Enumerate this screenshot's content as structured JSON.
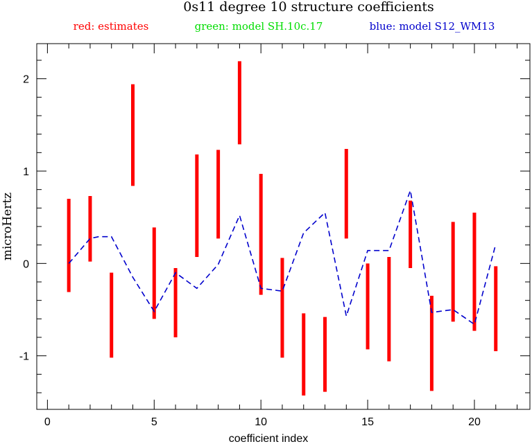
{
  "chart_data": {
    "type": "errorbar-line",
    "title": "0s11 degree 10 structure coefficients",
    "legend": [
      {
        "label": "red: estimates",
        "color": "#ff0000"
      },
      {
        "label": "green: model SH.10c.17",
        "color": "#00dd00"
      },
      {
        "label": "blue: model S12_WM13",
        "color": "#0000cc"
      }
    ],
    "xlabel": "coefficient index",
    "ylabel": "microHertz",
    "xlim": [
      -0.5,
      22.6
    ],
    "ylim": [
      -1.58,
      2.38
    ],
    "xticks": [
      0,
      5,
      10,
      15,
      20
    ],
    "yticks": [
      -1,
      0,
      1,
      2
    ],
    "estimates": [
      {
        "x": 1,
        "low": -0.31,
        "high": 0.7
      },
      {
        "x": 2,
        "low": 0.02,
        "high": 0.73
      },
      {
        "x": 3,
        "low": -1.02,
        "high": -0.1
      },
      {
        "x": 4,
        "low": 0.84,
        "high": 1.94
      },
      {
        "x": 5,
        "low": -0.6,
        "high": 0.39
      },
      {
        "x": 6,
        "low": -0.8,
        "high": -0.05
      },
      {
        "x": 7,
        "low": 0.07,
        "high": 1.18
      },
      {
        "x": 8,
        "low": 0.27,
        "high": 1.23
      },
      {
        "x": 9,
        "low": 1.29,
        "high": 2.19
      },
      {
        "x": 10,
        "low": -0.34,
        "high": 0.97
      },
      {
        "x": 11,
        "low": -1.02,
        "high": 0.06
      },
      {
        "x": 12,
        "low": -1.43,
        "high": -0.54
      },
      {
        "x": 13,
        "low": -1.39,
        "high": -0.58
      },
      {
        "x": 14,
        "low": 0.27,
        "high": 1.24
      },
      {
        "x": 15,
        "low": -0.93,
        "high": 0.0
      },
      {
        "x": 16,
        "low": -1.06,
        "high": 0.07
      },
      {
        "x": 17,
        "low": -0.05,
        "high": 0.68
      },
      {
        "x": 18,
        "low": -1.38,
        "high": -0.35
      },
      {
        "x": 19,
        "low": -0.63,
        "high": 0.45
      },
      {
        "x": 20,
        "low": -0.73,
        "high": 0.55
      },
      {
        "x": 21,
        "low": -0.95,
        "high": -0.03
      }
    ],
    "model_blue": {
      "x": [
        1,
        2,
        2.4,
        3,
        4,
        5,
        6,
        7,
        8,
        9,
        10,
        11,
        12,
        13,
        14,
        15,
        16,
        17,
        18,
        19,
        20,
        21
      ],
      "y": [
        0.0,
        0.27,
        0.29,
        0.29,
        -0.15,
        -0.52,
        -0.1,
        -0.27,
        -0.01,
        0.52,
        -0.27,
        -0.3,
        0.33,
        0.55,
        -0.57,
        0.14,
        0.14,
        0.79,
        -0.53,
        -0.5,
        -0.66,
        0.21
      ]
    }
  }
}
